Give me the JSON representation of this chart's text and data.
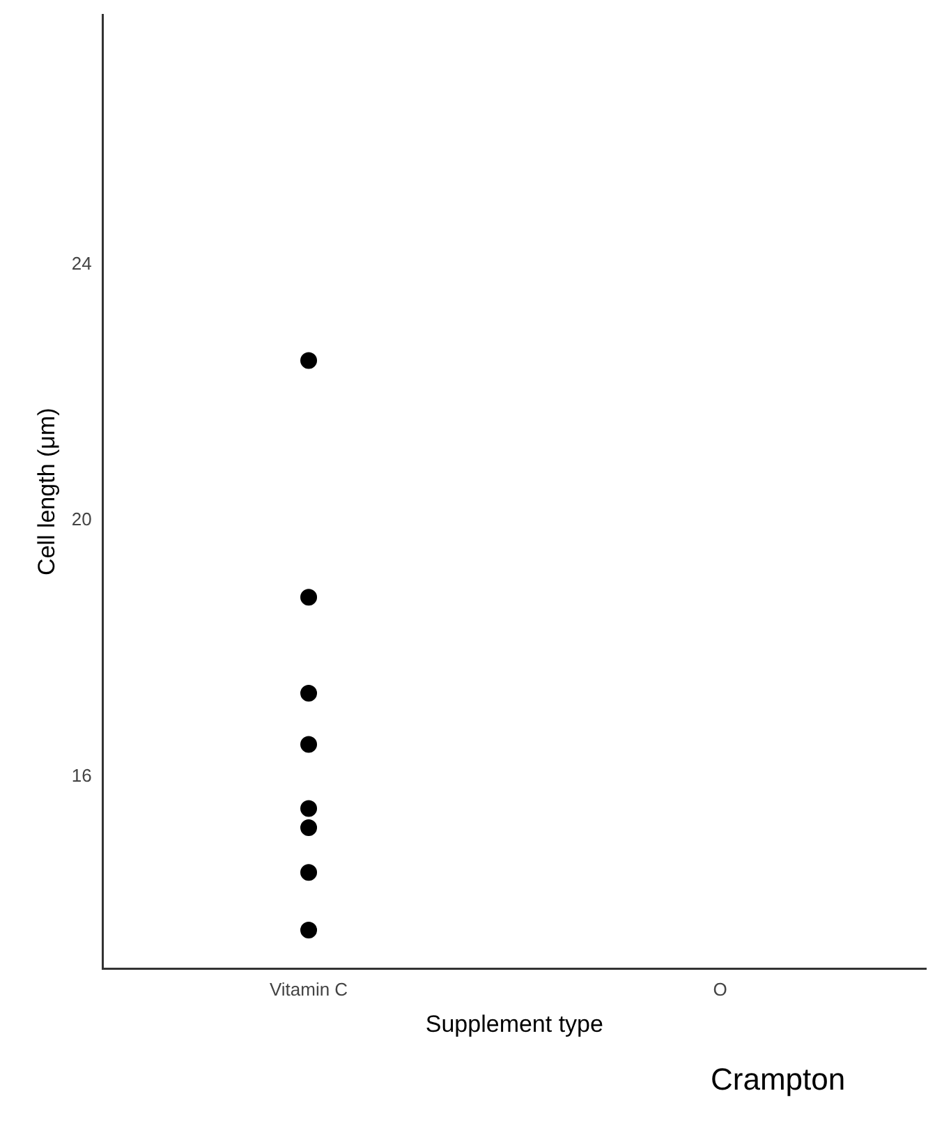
{
  "chart_data": {
    "type": "scatter",
    "xlabel": "Supplement type",
    "ylabel": "Cell length (μm)",
    "categories": [
      "Vitamin C",
      "O"
    ],
    "series": [
      {
        "color": "#000000",
        "x": [
          "Vitamin C",
          "Vitamin C",
          "Vitamin C",
          "Vitamin C",
          "Vitamin C",
          "Vitamin C",
          "Vitamin C",
          "Vitamin C"
        ],
        "values": [
          22.5,
          18.8,
          17.3,
          16.5,
          15.5,
          15.2,
          14.5,
          13.6
        ]
      }
    ],
    "ylim": [
      13,
      27.9
    ],
    "yticks": [
      16,
      20,
      24
    ],
    "grid": false,
    "legend": false,
    "marker": "circle",
    "annotations": [
      "Crampton"
    ]
  }
}
